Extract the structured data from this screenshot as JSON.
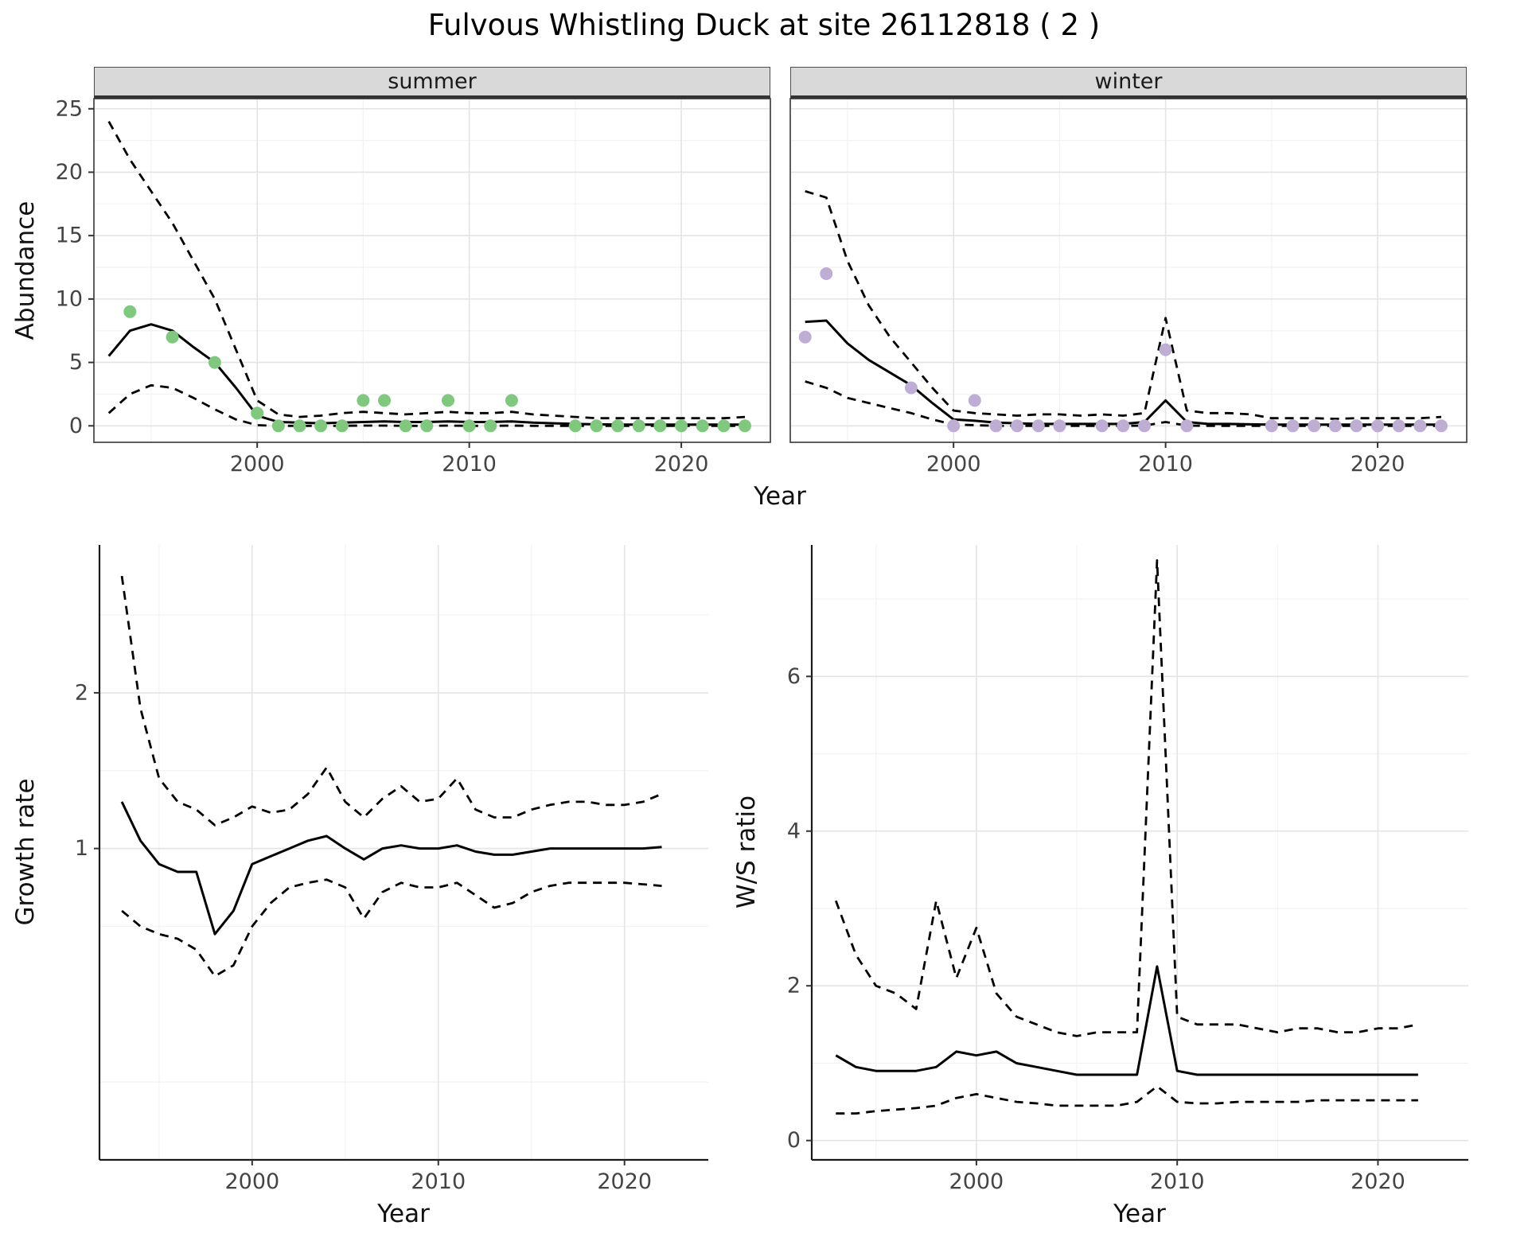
{
  "title": "Fulvous Whistling Duck at site 26112818 ( 2 )",
  "colors": {
    "line": "#000000",
    "strip_bg": "#D9D9D9",
    "grid_major": "#E4E4E4",
    "grid_minor": "#F2F2F2",
    "tick_text": "#444444",
    "panel_border": "#4d4d4d",
    "axis_line": "#1a1a1a"
  },
  "chart_data": [
    {
      "id": "abundance_summer",
      "type": "line",
      "facet_label": "summer",
      "xlabel": "Year",
      "ylabel": "Abundance",
      "xlim": [
        1992.3,
        2024.2
      ],
      "ylim": [
        -1.3,
        25.8
      ],
      "xticks": [
        2000,
        2010,
        2020
      ],
      "yticks": [
        0,
        5,
        10,
        15,
        20,
        25
      ],
      "grid": true,
      "legend": "none",
      "point_color": "#7FC97F",
      "line_x": [
        1993,
        1994,
        1995,
        1996,
        1997,
        1998,
        1999,
        2000,
        2001,
        2002,
        2003,
        2004,
        2005,
        2006,
        2007,
        2008,
        2009,
        2010,
        2011,
        2012,
        2013,
        2014,
        2015,
        2016,
        2017,
        2018,
        2019,
        2020,
        2021,
        2022,
        2023
      ],
      "lines": [
        {
          "name": "fit",
          "style": "solid",
          "y": [
            5.5,
            7.5,
            8.0,
            7.5,
            6.2,
            5.0,
            3.0,
            0.8,
            0.3,
            0.25,
            0.2,
            0.25,
            0.3,
            0.35,
            0.3,
            0.3,
            0.35,
            0.3,
            0.3,
            0.35,
            0.25,
            0.2,
            0.15,
            0.12,
            0.1,
            0.1,
            0.1,
            0.1,
            0.1,
            0.1,
            0.1
          ]
        },
        {
          "name": "upper_ci",
          "style": "dashed",
          "y": [
            24,
            21,
            18.5,
            16,
            13,
            10,
            6,
            2,
            0.9,
            0.7,
            0.8,
            1.0,
            1.1,
            1.0,
            0.9,
            1.0,
            1.1,
            1.0,
            1.0,
            1.1,
            0.9,
            0.8,
            0.7,
            0.6,
            0.6,
            0.6,
            0.6,
            0.6,
            0.6,
            0.6,
            0.7
          ]
        },
        {
          "name": "lower_ci",
          "style": "dashed",
          "y": [
            1.0,
            2.5,
            3.2,
            3.0,
            2.2,
            1.3,
            0.5,
            0.05,
            0,
            0,
            0,
            0,
            0.02,
            0.02,
            0,
            0,
            0.02,
            0,
            0,
            0.02,
            0,
            0,
            0,
            0,
            0,
            0,
            0,
            0,
            0,
            0,
            0
          ]
        }
      ],
      "points": {
        "x": [
          1994,
          1996,
          1998,
          2000,
          2001,
          2002,
          2003,
          2004,
          2005,
          2006,
          2007,
          2008,
          2009,
          2010,
          2011,
          2012,
          2015,
          2016,
          2017,
          2018,
          2019,
          2020,
          2021,
          2022,
          2023
        ],
        "y": [
          9,
          7,
          5,
          1,
          0,
          0,
          0,
          0,
          2,
          2,
          0,
          0,
          2,
          0,
          0,
          2,
          0,
          0,
          0,
          0,
          0,
          0,
          0,
          0,
          0
        ]
      }
    },
    {
      "id": "abundance_winter",
      "type": "line",
      "facet_label": "winter",
      "xlabel": "Year",
      "ylabel": "Abundance",
      "xlim": [
        1992.3,
        2024.2
      ],
      "ylim": [
        -1.3,
        25.8
      ],
      "xticks": [
        2000,
        2010,
        2020
      ],
      "yticks": [
        0,
        5,
        10,
        15,
        20,
        25
      ],
      "grid": true,
      "legend": "none",
      "point_color": "#BEAED4",
      "line_x": [
        1993,
        1994,
        1995,
        1996,
        1997,
        1998,
        1999,
        2000,
        2001,
        2002,
        2003,
        2004,
        2005,
        2006,
        2007,
        2008,
        2009,
        2010,
        2011,
        2012,
        2013,
        2014,
        2015,
        2016,
        2017,
        2018,
        2019,
        2020,
        2021,
        2022,
        2023
      ],
      "lines": [
        {
          "name": "fit",
          "style": "solid",
          "y": [
            8.2,
            8.3,
            6.5,
            5.2,
            4.2,
            3.2,
            1.8,
            0.5,
            0.4,
            0.25,
            0.2,
            0.15,
            0.15,
            0.15,
            0.15,
            0.15,
            0.3,
            2.0,
            0.3,
            0.15,
            0.15,
            0.12,
            0.1,
            0.1,
            0.1,
            0.1,
            0.1,
            0.1,
            0.1,
            0.1,
            0.1
          ]
        },
        {
          "name": "upper_ci",
          "style": "dashed",
          "y": [
            18.5,
            18.0,
            13,
            9.5,
            7,
            5,
            3,
            1.2,
            1.0,
            0.9,
            0.8,
            0.9,
            0.9,
            0.8,
            0.9,
            0.8,
            1.0,
            8.5,
            1.2,
            1.0,
            1.0,
            0.9,
            0.6,
            0.6,
            0.6,
            0.55,
            0.6,
            0.6,
            0.6,
            0.6,
            0.7
          ]
        },
        {
          "name": "lower_ci",
          "style": "dashed",
          "y": [
            3.5,
            3.0,
            2.2,
            1.8,
            1.4,
            1.0,
            0.5,
            0.1,
            0.05,
            0,
            0,
            0,
            0,
            0,
            0,
            0,
            0.02,
            0.3,
            0.02,
            0,
            0,
            0,
            0,
            0,
            0,
            0,
            0,
            0,
            0,
            0,
            0
          ]
        }
      ],
      "points": {
        "x": [
          1993,
          1994,
          1998,
          2000,
          2001,
          2002,
          2003,
          2004,
          2005,
          2007,
          2008,
          2009,
          2010,
          2011,
          2015,
          2016,
          2017,
          2018,
          2019,
          2020,
          2021,
          2022,
          2023
        ],
        "y": [
          7,
          12,
          3,
          0,
          2,
          0,
          0,
          0,
          0,
          0,
          0,
          0,
          6,
          0,
          0,
          0,
          0,
          0,
          0,
          0,
          0,
          0,
          0
        ]
      }
    },
    {
      "id": "growth_rate",
      "type": "line",
      "facet_label": "",
      "xlabel": "Year",
      "ylabel": "Growth rate",
      "xlim": [
        1991.8,
        2024.5
      ],
      "ylim": [
        -1.0,
        2.95
      ],
      "xticks": [
        2000,
        2010,
        2020
      ],
      "yticks": [
        1,
        2
      ],
      "grid": true,
      "legend": "none",
      "point_color": null,
      "line_x": [
        1993,
        1994,
        1995,
        1996,
        1997,
        1998,
        1999,
        2000,
        2001,
        2002,
        2003,
        2004,
        2005,
        2006,
        2007,
        2008,
        2009,
        2010,
        2011,
        2012,
        2013,
        2014,
        2015,
        2016,
        2017,
        2018,
        2019,
        2020,
        2021,
        2022
      ],
      "lines": [
        {
          "name": "fit",
          "style": "solid",
          "y": [
            1.3,
            1.05,
            0.9,
            0.85,
            0.85,
            0.45,
            0.6,
            0.9,
            0.95,
            1.0,
            1.05,
            1.08,
            1.0,
            0.93,
            1.0,
            1.02,
            1.0,
            1.0,
            1.02,
            0.98,
            0.96,
            0.96,
            0.98,
            1.0,
            1.0,
            1.0,
            1.0,
            1.0,
            1.0,
            1.01
          ]
        },
        {
          "name": "upper_ci",
          "style": "dashed",
          "y": [
            2.75,
            1.9,
            1.45,
            1.3,
            1.25,
            1.15,
            1.2,
            1.27,
            1.23,
            1.25,
            1.35,
            1.52,
            1.3,
            1.2,
            1.32,
            1.4,
            1.3,
            1.32,
            1.45,
            1.25,
            1.2,
            1.2,
            1.25,
            1.28,
            1.3,
            1.3,
            1.28,
            1.28,
            1.3,
            1.35
          ]
        },
        {
          "name": "lower_ci",
          "style": "dashed",
          "y": [
            0.6,
            0.5,
            0.45,
            0.42,
            0.35,
            0.18,
            0.25,
            0.5,
            0.65,
            0.75,
            0.78,
            0.8,
            0.75,
            0.55,
            0.72,
            0.78,
            0.75,
            0.75,
            0.78,
            0.7,
            0.62,
            0.65,
            0.72,
            0.76,
            0.78,
            0.78,
            0.78,
            0.78,
            0.77,
            0.76
          ]
        }
      ],
      "points": null
    },
    {
      "id": "ws_ratio",
      "type": "line",
      "facet_label": "",
      "xlabel": "Year",
      "ylabel": "W/S ratio",
      "xlim": [
        1991.8,
        2024.5
      ],
      "ylim": [
        -0.25,
        7.7
      ],
      "xticks": [
        2000,
        2010,
        2020
      ],
      "yticks": [
        0,
        2,
        4,
        6
      ],
      "grid": true,
      "legend": "none",
      "point_color": null,
      "line_x": [
        1993,
        1994,
        1995,
        1996,
        1997,
        1998,
        1999,
        2000,
        2001,
        2002,
        2003,
        2004,
        2005,
        2006,
        2007,
        2008,
        2009,
        2010,
        2011,
        2012,
        2013,
        2014,
        2015,
        2016,
        2017,
        2018,
        2019,
        2020,
        2021,
        2022
      ],
      "lines": [
        {
          "name": "fit",
          "style": "solid",
          "y": [
            1.1,
            0.95,
            0.9,
            0.9,
            0.9,
            0.95,
            1.15,
            1.1,
            1.15,
            1.0,
            0.95,
            0.9,
            0.85,
            0.85,
            0.85,
            0.85,
            2.25,
            0.9,
            0.85,
            0.85,
            0.85,
            0.85,
            0.85,
            0.85,
            0.85,
            0.85,
            0.85,
            0.85,
            0.85,
            0.85
          ]
        },
        {
          "name": "upper_ci",
          "style": "dashed",
          "y": [
            3.1,
            2.4,
            2.0,
            1.9,
            1.7,
            3.1,
            2.1,
            2.75,
            1.9,
            1.6,
            1.5,
            1.4,
            1.35,
            1.4,
            1.4,
            1.4,
            7.5,
            1.6,
            1.5,
            1.5,
            1.5,
            1.45,
            1.4,
            1.45,
            1.45,
            1.4,
            1.4,
            1.45,
            1.45,
            1.5
          ]
        },
        {
          "name": "lower_ci",
          "style": "dashed",
          "y": [
            0.35,
            0.35,
            0.38,
            0.4,
            0.42,
            0.45,
            0.55,
            0.6,
            0.55,
            0.5,
            0.48,
            0.45,
            0.45,
            0.45,
            0.45,
            0.5,
            0.7,
            0.5,
            0.48,
            0.48,
            0.5,
            0.5,
            0.5,
            0.5,
            0.52,
            0.52,
            0.52,
            0.52,
            0.52,
            0.52
          ]
        }
      ],
      "points": null
    }
  ]
}
